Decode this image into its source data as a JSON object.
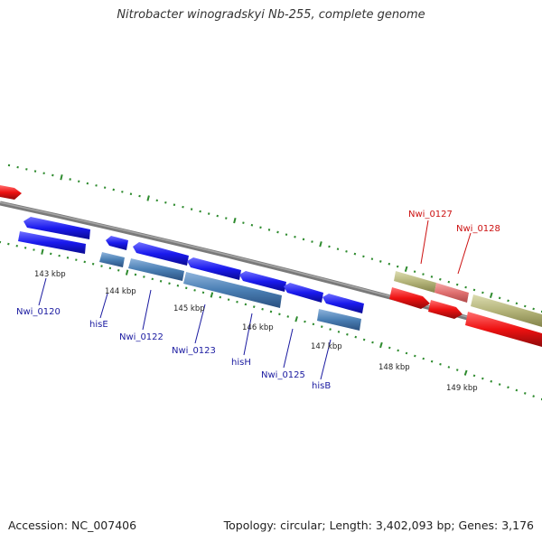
{
  "title": "Nitrobacter winogradskyi Nb-255, complete genome",
  "footer": {
    "accession": "Accession: NC_007406",
    "summary": "Topology: circular; Length: 3,402,093 bp; Genes: 3,176"
  },
  "colors": {
    "background": "#ffffff",
    "ruler_tick": "#2e8b2e",
    "backbone": "#7a7a7a",
    "gene_blue": "#1a1aee",
    "gene_steel": "#4a7fb4",
    "gene_red": "#ee1111",
    "gene_olive": "#b4b47a",
    "gene_pink": "#e07070",
    "label_blue": "#1a1aa0",
    "label_red": "#cc1111",
    "kbp_label": "#222222"
  },
  "kbp_ticks": [
    "143 kbp",
    "144 kbp",
    "145 kbp",
    "146 kbp",
    "147 kbp",
    "148 kbp",
    "149 kbp"
  ],
  "gene_labels": [
    {
      "text": "Nwi_0120",
      "color": "blue"
    },
    {
      "text": "hisE",
      "color": "blue"
    },
    {
      "text": "Nwi_0122",
      "color": "blue"
    },
    {
      "text": "Nwi_0123",
      "color": "blue"
    },
    {
      "text": "hisH",
      "color": "blue"
    },
    {
      "text": "Nwi_0125",
      "color": "blue"
    },
    {
      "text": "hisB",
      "color": "blue"
    },
    {
      "text": "Nwi_0127",
      "color": "red"
    },
    {
      "text": "Nwi_0128",
      "color": "red"
    }
  ]
}
